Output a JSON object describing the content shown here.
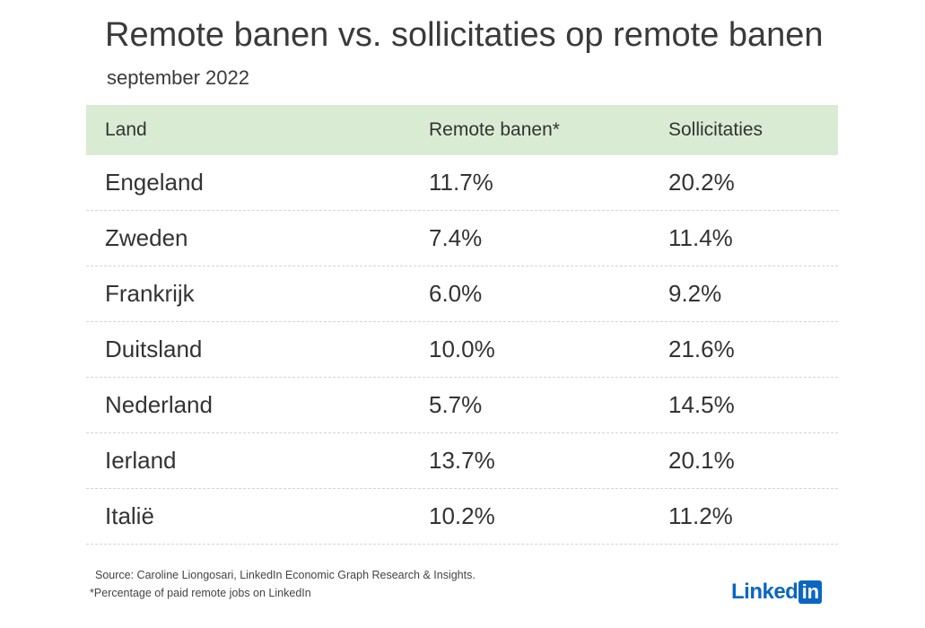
{
  "chart_data": {
    "type": "table",
    "title": "Remote banen vs. sollicitaties op remote banen",
    "subtitle": "september 2022",
    "columns": [
      "Land",
      "Remote banen*",
      "Sollicitaties"
    ],
    "rows": [
      [
        "Engeland",
        "11.7%",
        "20.2%"
      ],
      [
        "Zweden",
        "7.4%",
        "11.4%"
      ],
      [
        "Frankrijk",
        "6.0%",
        "9.2%"
      ],
      [
        "Duitsland",
        "10.0%",
        "21.6%"
      ],
      [
        "Nederland",
        "5.7%",
        "14.5%"
      ],
      [
        "Ierland",
        "13.7%",
        "20.1%"
      ],
      [
        "Italië",
        "10.2%",
        "11.2%"
      ]
    ]
  },
  "footer": {
    "source": "Source: Caroline Liongosari, LinkedIn Economic Graph Research & Insights.",
    "footnote": "*Percentage of paid remote jobs on LinkedIn"
  },
  "logo": {
    "text": "Linked",
    "box": "in"
  },
  "colors": {
    "header_bg": "#d9ecd3",
    "brand": "#0a66c2"
  }
}
